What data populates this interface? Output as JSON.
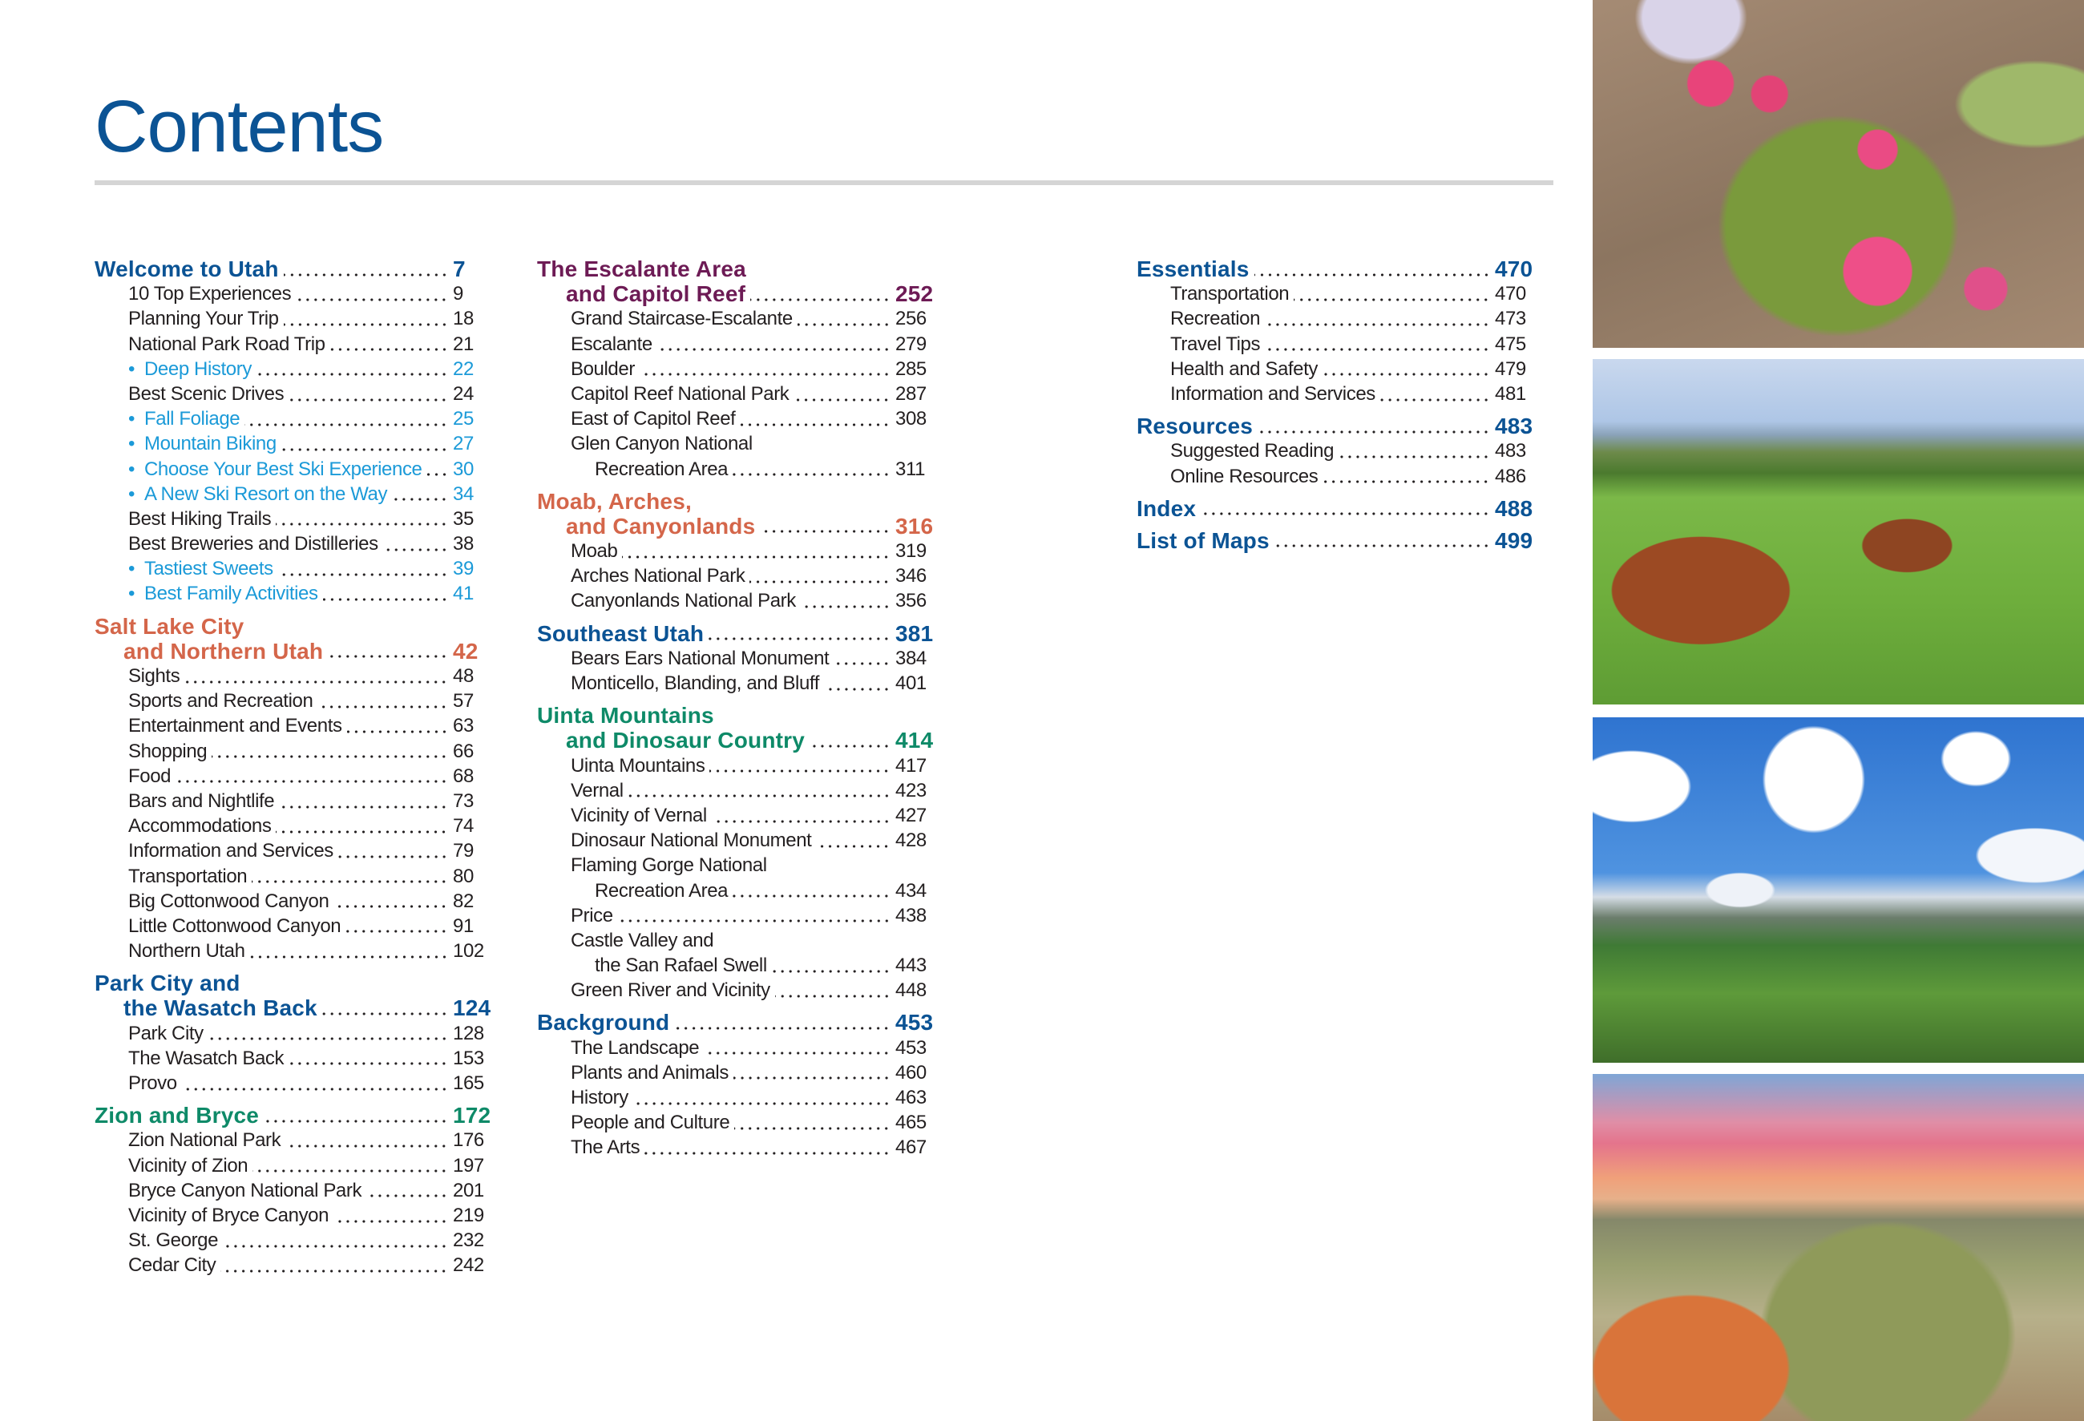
{
  "title": "Contents",
  "colors": {
    "blue": "#0b5394",
    "orange": "#d4664a",
    "purple": "#6d1b55",
    "green": "#0e8a68",
    "link": "#1b9ad8",
    "text": "#231f20"
  },
  "photos": [
    {
      "subject": "prickly-pear-cactus-flowers"
    },
    {
      "subject": "highland-cattle-grazing"
    },
    {
      "subject": "mountain-valley-blue-sky"
    },
    {
      "subject": "desert-sunset-sagebrush"
    }
  ],
  "columns": [
    [
      {
        "title": [
          "Welcome to Utah"
        ],
        "page": "7",
        "color": "blue",
        "items": [
          {
            "label": "10 Top Experiences",
            "page": "9"
          },
          {
            "label": "Planning Your Trip",
            "page": "18"
          },
          {
            "label": "National Park Road Trip",
            "page": "21"
          },
          {
            "label": "Deep History",
            "page": "22",
            "bullet": true
          },
          {
            "label": "Best Scenic Drives",
            "page": "24"
          },
          {
            "label": "Fall Foliage",
            "page": "25",
            "bullet": true
          },
          {
            "label": "Mountain Biking",
            "page": "27",
            "bullet": true
          },
          {
            "label": "Choose Your Best Ski Experience",
            "page": "30",
            "bullet": true
          },
          {
            "label": "A New Ski Resort on the Way",
            "page": "34",
            "bullet": true
          },
          {
            "label": "Best Hiking Trails",
            "page": "35"
          },
          {
            "label": "Best Breweries and Distilleries",
            "page": "38"
          },
          {
            "label": "Tastiest Sweets",
            "page": "39",
            "bullet": true
          },
          {
            "label": "Best Family Activities",
            "page": "41",
            "bullet": true
          }
        ]
      },
      {
        "title": [
          "Salt Lake City",
          "and Northern Utah"
        ],
        "page": "42",
        "color": "orange",
        "items": [
          {
            "label": "Sights",
            "page": "48"
          },
          {
            "label": "Sports and Recreation",
            "page": "57"
          },
          {
            "label": "Entertainment and Events",
            "page": "63"
          },
          {
            "label": "Shopping",
            "page": "66"
          },
          {
            "label": "Food",
            "page": "68"
          },
          {
            "label": "Bars and Nightlife",
            "page": "73"
          },
          {
            "label": "Accommodations",
            "page": "74"
          },
          {
            "label": "Information and Services",
            "page": "79"
          },
          {
            "label": "Transportation",
            "page": "80"
          },
          {
            "label": "Big Cottonwood Canyon",
            "page": "82"
          },
          {
            "label": "Little Cottonwood Canyon",
            "page": "91"
          },
          {
            "label": "Northern Utah",
            "page": "102"
          }
        ]
      },
      {
        "title": [
          "Park City and",
          "the Wasatch Back"
        ],
        "page": "124",
        "color": "blue",
        "items": [
          {
            "label": "Park City",
            "page": "128"
          },
          {
            "label": "The Wasatch Back",
            "page": "153"
          },
          {
            "label": "Provo",
            "page": "165"
          }
        ]
      },
      {
        "title": [
          "Zion and Bryce"
        ],
        "page": "172",
        "color": "green",
        "items": [
          {
            "label": "Zion National Park",
            "page": "176"
          },
          {
            "label": "Vicinity of Zion",
            "page": "197"
          },
          {
            "label": "Bryce Canyon National Park",
            "page": "201"
          },
          {
            "label": "Vicinity of Bryce Canyon",
            "page": "219"
          },
          {
            "label": "St. George",
            "page": "232"
          },
          {
            "label": "Cedar City",
            "page": "242"
          }
        ]
      }
    ],
    [
      {
        "title": [
          "The Escalante Area",
          "and Capitol Reef"
        ],
        "page": "252",
        "color": "purple",
        "items": [
          {
            "label": "Grand Staircase-Escalante",
            "page": "256"
          },
          {
            "label": "Escalante",
            "page": "279"
          },
          {
            "label": "Boulder",
            "page": "285"
          },
          {
            "label": "Capitol Reef National Park",
            "page": "287"
          },
          {
            "label": "East of Capitol Reef",
            "page": "308"
          },
          {
            "label": "Glen Canyon National",
            "cont": "Recreation Area",
            "page": "311"
          }
        ]
      },
      {
        "title": [
          "Moab, Arches,",
          "and Canyonlands"
        ],
        "page": "316",
        "color": "orange",
        "items": [
          {
            "label": "Moab",
            "page": "319"
          },
          {
            "label": "Arches National Park",
            "page": "346"
          },
          {
            "label": "Canyonlands National Park",
            "page": "356"
          }
        ]
      },
      {
        "title": [
          "Southeast Utah"
        ],
        "page": "381",
        "color": "blue",
        "items": [
          {
            "label": "Bears Ears National Monument",
            "page": "384"
          },
          {
            "label": "Monticello, Blanding, and Bluff",
            "page": "401"
          }
        ]
      },
      {
        "title": [
          "Uinta Mountains",
          "and Dinosaur Country"
        ],
        "page": "414",
        "color": "green",
        "items": [
          {
            "label": "Uinta Mountains",
            "page": "417"
          },
          {
            "label": "Vernal",
            "page": "423"
          },
          {
            "label": "Vicinity of Vernal",
            "page": "427"
          },
          {
            "label": "Dinosaur National Monument",
            "page": "428"
          },
          {
            "label": "Flaming Gorge National",
            "cont": "Recreation Area",
            "page": "434"
          },
          {
            "label": "Price",
            "page": "438"
          },
          {
            "label": "Castle Valley and",
            "cont": "the San Rafael Swell",
            "page": "443"
          },
          {
            "label": "Green River and Vicinity",
            "page": "448"
          }
        ]
      },
      {
        "title": [
          "Background"
        ],
        "page": "453",
        "color": "blue",
        "items": [
          {
            "label": "The Landscape",
            "page": "453"
          },
          {
            "label": "Plants and Animals",
            "page": "460"
          },
          {
            "label": "History",
            "page": "463"
          },
          {
            "label": "People and Culture",
            "page": "465"
          },
          {
            "label": "The Arts",
            "page": "467"
          }
        ]
      }
    ],
    [
      {
        "title": [
          "Essentials"
        ],
        "page": "470",
        "color": "blue",
        "items": [
          {
            "label": "Transportation",
            "page": "470"
          },
          {
            "label": "Recreation",
            "page": "473"
          },
          {
            "label": "Travel Tips",
            "page": "475"
          },
          {
            "label": "Health and Safety",
            "page": "479"
          },
          {
            "label": "Information and Services",
            "page": "481"
          }
        ]
      },
      {
        "title": [
          "Resources"
        ],
        "page": "483",
        "color": "blue",
        "items": [
          {
            "label": "Suggested Reading",
            "page": "483"
          },
          {
            "label": "Online Resources",
            "page": "486"
          }
        ]
      },
      {
        "title": [
          "Index"
        ],
        "page": "488",
        "color": "blue",
        "items": []
      },
      {
        "title": [
          "List of Maps"
        ],
        "page": "499",
        "color": "blue",
        "items": []
      }
    ]
  ]
}
